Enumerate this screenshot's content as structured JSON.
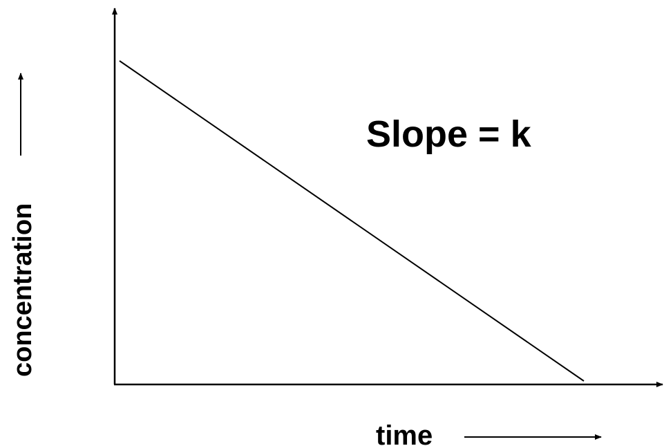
{
  "y_label": "concentration",
  "x_label": "time",
  "annotation": "Slope = k"
}
